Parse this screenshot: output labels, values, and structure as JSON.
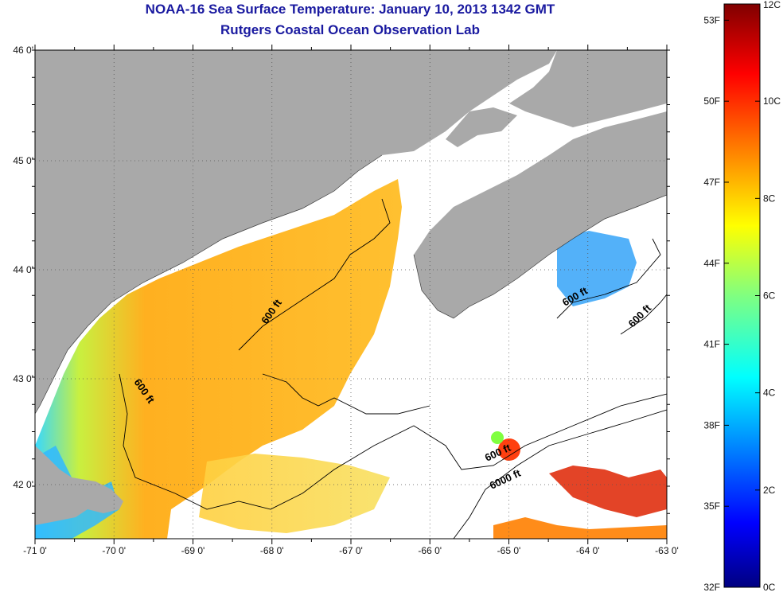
{
  "header": {
    "title": "NOAA-16 Sea Surface Temperature:  January 10, 2013 1342 GMT",
    "subtitle": "Rutgers Coastal Ocean Observation Lab"
  },
  "map": {
    "lon_ticks": [
      "-71 0'",
      "-70 0'",
      "-69 0'",
      "-68 0'",
      "-67 0'",
      "-66 0'",
      "-65 0'",
      "-64 0'",
      "-63 0'"
    ],
    "lat_ticks": [
      "46 0'",
      "45 0'",
      "44 0'",
      "43 0'",
      "42 0'"
    ],
    "contour_labels": [
      "600 ft",
      "600 ft",
      "600 ft",
      "600 ft",
      "600 ft",
      "6000 ft"
    ],
    "colors": {
      "land": "#a9a9a9",
      "cloud": "#ffffff",
      "contour": "#000000"
    }
  },
  "colorbar": {
    "fahrenheit_labels": [
      "53F",
      "50F",
      "47F",
      "44F",
      "41F",
      "38F",
      "35F",
      "32F"
    ],
    "celsius_labels": [
      "12C",
      "10C",
      "8C",
      "6C",
      "4C",
      "2C",
      "0C"
    ],
    "colormap": "jet"
  }
}
